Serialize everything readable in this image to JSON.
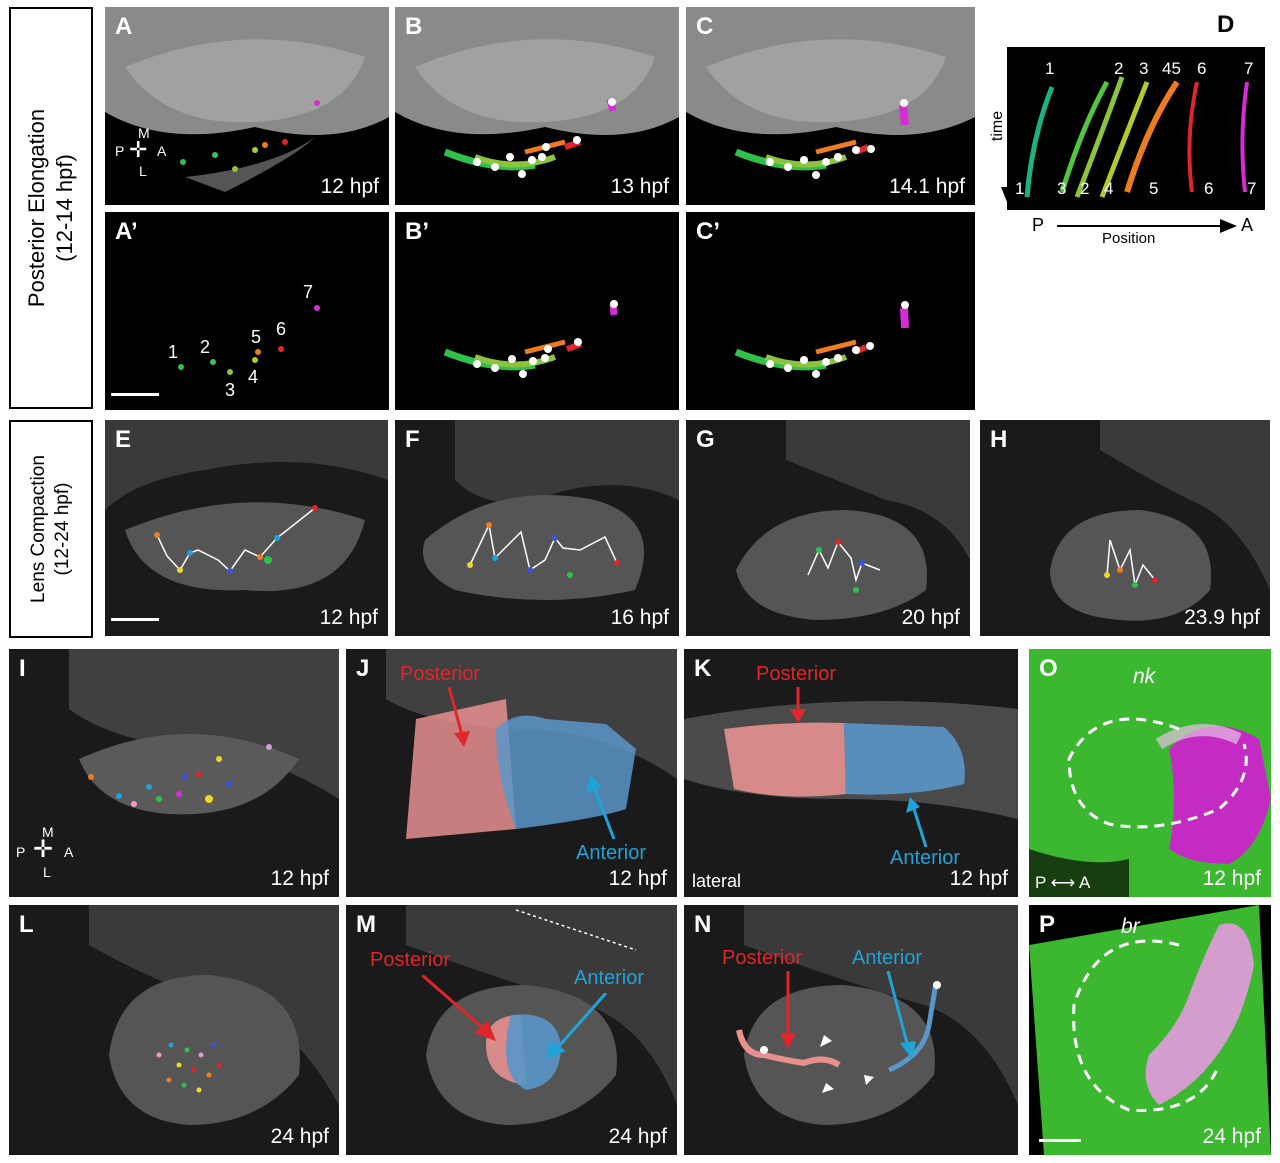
{
  "rows": {
    "row1_title": "Posterior Elongation",
    "row1_sub": "(12-14 hpf)",
    "row2_title": "Lens Compaction",
    "row2_sub": "(12-24 hpf)"
  },
  "panels": {
    "A": {
      "label": "A",
      "time": "12 hpf"
    },
    "B": {
      "label": "B",
      "time": "13 hpf"
    },
    "C": {
      "label": "C",
      "time": "14.1 hpf"
    },
    "D": {
      "label": "D",
      "axis_p": "P",
      "axis_a": "A",
      "axis_label": "Position",
      "time_label": "time",
      "top_numbers": [
        "1",
        "2",
        "3",
        "45",
        "6",
        "7"
      ],
      "bottom_numbers": [
        "1",
        "3",
        "2",
        "4",
        "5",
        "6",
        "7"
      ]
    },
    "A2": {
      "label": "A’",
      "numbers": [
        "1",
        "2",
        "3",
        "4",
        "5",
        "6",
        "7"
      ]
    },
    "B2": {
      "label": "B’"
    },
    "C2": {
      "label": "C’"
    },
    "E": {
      "label": "E",
      "time": "12 hpf"
    },
    "F": {
      "label": "F",
      "time": "16 hpf"
    },
    "G": {
      "label": "G",
      "time": "20 hpf"
    },
    "H": {
      "label": "H",
      "time": "23.9 hpf"
    },
    "I": {
      "label": "I",
      "time": "12 hpf"
    },
    "J": {
      "label": "J",
      "time": "12 hpf",
      "posterior": "Posterior",
      "anterior": "Anterior"
    },
    "K": {
      "label": "K",
      "time": "12 hpf",
      "posterior": "Posterior",
      "anterior": "Anterior",
      "view": "lateral"
    },
    "O": {
      "label": "O",
      "time": "12 hpf",
      "gene": "nk",
      "p": "P",
      "a": "A"
    },
    "L": {
      "label": "L",
      "time": "24 hpf"
    },
    "M": {
      "label": "M",
      "time": "24 hpf",
      "posterior": "Posterior",
      "anterior": "Anterior"
    },
    "N": {
      "label": "N",
      "time": "",
      "posterior": "Posterior",
      "anterior": "Anterior"
    },
    "P": {
      "label": "P",
      "time": "24 hpf",
      "gene": "br"
    }
  },
  "compass": {
    "m": "M",
    "l": "L",
    "p": "P",
    "a": "A"
  },
  "colors": {
    "posterior_red": "#e0252b",
    "anterior_blue": "#20a3d8",
    "stain_green": "#3dbb2a",
    "stain_magenta": "#d62cd6"
  }
}
